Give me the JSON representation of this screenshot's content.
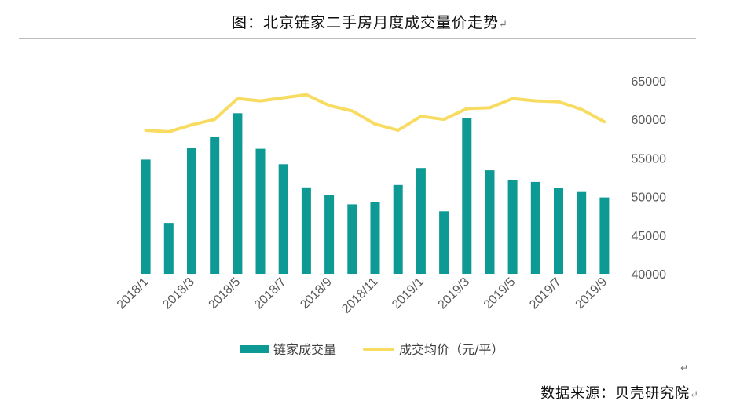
{
  "title": "图：北京链家二手房月度成交量价走势",
  "title_mark": "↵",
  "source": "数据来源：贝壳研究院",
  "source_mark": "↵",
  "return_mark": "↵",
  "chart_data": {
    "type": "bar",
    "categories": [
      "2018/1",
      "2018/2",
      "2018/3",
      "2018/4",
      "2018/5",
      "2018/6",
      "2018/7",
      "2018/8",
      "2018/9",
      "2018/10",
      "2018/11",
      "2018/12",
      "2019/1",
      "2019/2",
      "2019/3",
      "2019/4",
      "2019/5",
      "2019/6",
      "2019/7",
      "2019/8",
      "2019/9"
    ],
    "tick_labels": [
      "2018/1",
      "2018/3",
      "2018/5",
      "2018/7",
      "2018/9",
      "2018/11",
      "2019/1",
      "2019/3",
      "2019/5",
      "2019/7",
      "2019/9"
    ],
    "ylim": [
      40000,
      65000
    ],
    "yticks": [
      "40000",
      "45000",
      "50000",
      "55000",
      "60000",
      "65000"
    ],
    "grid": false,
    "legend_position": "bottom",
    "series": [
      {
        "name": "链家成交量",
        "type": "bar",
        "color": "#0e9a94",
        "values": [
          54800,
          46600,
          56300,
          57700,
          60800,
          56200,
          54200,
          51200,
          50200,
          49000,
          49300,
          51500,
          53700,
          48100,
          60200,
          53400,
          52200,
          51900,
          51100,
          50600,
          49900
        ]
      },
      {
        "name": "成交均价（元/平）",
        "type": "line",
        "color": "#f8dc62",
        "values": [
          58600,
          58400,
          59300,
          60000,
          62700,
          62400,
          62800,
          63200,
          61800,
          61100,
          59400,
          58600,
          60400,
          60000,
          61400,
          61500,
          62700,
          62400,
          62300,
          61300,
          59700
        ]
      }
    ]
  }
}
